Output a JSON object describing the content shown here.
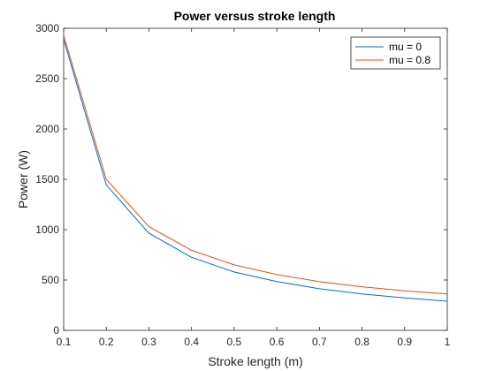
{
  "chart_data": {
    "type": "line",
    "title": "Power versus stroke length",
    "xlabel": "Stroke length (m)",
    "ylabel": "Power (W)",
    "xlim": [
      0.1,
      1
    ],
    "ylim": [
      0,
      3000
    ],
    "xticks": [
      "0.1",
      "0.2",
      "0.3",
      "0.4",
      "0.5",
      "0.6",
      "0.7",
      "0.8",
      "0.9",
      "1"
    ],
    "yticks": [
      "0",
      "500",
      "1000",
      "1500",
      "2000",
      "2500",
      "3000"
    ],
    "grid": false,
    "legend": "top-right",
    "x": [
      0.1,
      0.2,
      0.3,
      0.4,
      0.5,
      0.6,
      0.7,
      0.8,
      0.9,
      1.0
    ],
    "series": [
      {
        "name": "mu = 0",
        "color": "#0072BD",
        "values": [
          2890,
          1445,
          965,
          725,
          580,
          485,
          413,
          362,
          322,
          290
        ]
      },
      {
        "name": "mu = 0.8",
        "color": "#D95319",
        "values": [
          2930,
          1500,
          1030,
          795,
          650,
          555,
          484,
          433,
          393,
          362
        ]
      }
    ]
  }
}
